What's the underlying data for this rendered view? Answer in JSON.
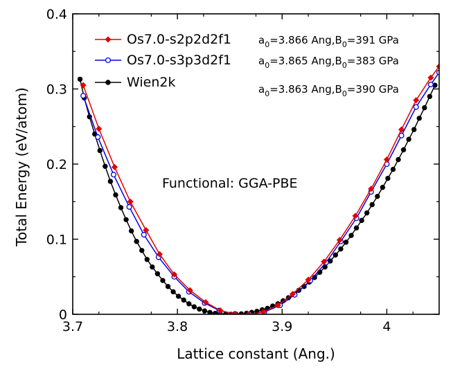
{
  "chart_data": {
    "type": "line",
    "xlabel": "Lattice constant (Ang.)",
    "ylabel": "Total Energy (eV/atom)",
    "xlim": [
      3.7,
      4.05
    ],
    "ylim": [
      0,
      0.4
    ],
    "x_ticks": [
      3.7,
      3.8,
      3.9,
      4.0
    ],
    "x_tick_labels": [
      "3.7",
      "3.8",
      "3.9",
      "4"
    ],
    "y_ticks": [
      0,
      0.1,
      0.2,
      0.3,
      0.4
    ],
    "y_tick_labels": [
      "0",
      "0.1",
      "0.2",
      "0.3",
      "0.4"
    ],
    "grid": false,
    "legend_position": "top-left",
    "annotation": "Functional: GGA-PBE",
    "series": [
      {
        "name": "Os7.0-s2p2d2f1",
        "note": {
          "a_prefix": "a",
          "a_sub": "0",
          "a_value": "=3.866 Ang,",
          "b_prefix": "B",
          "b_sub": "0",
          "b_value": "=391 GPa"
        },
        "color": "#e00000",
        "marker": "filled-diamond",
        "x": [
          3.71,
          3.725,
          3.74,
          3.755,
          3.77,
          3.783,
          3.797,
          3.812,
          3.827,
          3.841,
          3.855,
          3.868,
          3.882,
          3.896,
          3.91,
          3.925,
          3.94,
          3.955,
          3.97,
          3.985,
          4.0,
          4.014,
          4.028,
          4.042,
          4.05
        ],
        "y": [
          0.305,
          0.247,
          0.196,
          0.15,
          0.112,
          0.08,
          0.053,
          0.032,
          0.016,
          0.005,
          0.0005,
          0.0,
          0.003,
          0.012,
          0.027,
          0.046,
          0.07,
          0.099,
          0.131,
          0.167,
          0.206,
          0.246,
          0.285,
          0.315,
          0.33
        ]
      },
      {
        "name": "Os7.0-s3p3d2f1",
        "note": {
          "a_prefix": "a",
          "a_sub": "0",
          "a_value": "=3.865 Ang,",
          "b_prefix": "B",
          "b_sub": "0",
          "b_value": "=383 GPa"
        },
        "color": "#0000e0",
        "marker": "open-circle",
        "x": [
          3.71,
          3.724,
          3.739,
          3.754,
          3.768,
          3.782,
          3.797,
          3.811,
          3.826,
          3.84,
          3.855,
          3.869,
          3.883,
          3.898,
          3.912,
          3.927,
          3.942,
          3.956,
          3.971,
          3.985,
          4.0,
          4.014,
          4.028,
          4.042,
          4.05
        ],
        "y": [
          0.291,
          0.236,
          0.186,
          0.143,
          0.106,
          0.076,
          0.05,
          0.03,
          0.015,
          0.005,
          0.0005,
          0.0,
          0.003,
          0.012,
          0.026,
          0.045,
          0.069,
          0.097,
          0.128,
          0.163,
          0.2,
          0.238,
          0.276,
          0.306,
          0.322
        ]
      },
      {
        "name": "Wien2k",
        "note": {
          "a_prefix": "a",
          "a_sub": "0",
          "a_value": "=3.863 Ang,",
          "b_prefix": "B",
          "b_sub": "0",
          "b_value": "=390 GPa"
        },
        "color": "#000000",
        "marker": "filled-circle",
        "x": [
          3.707,
          3.711,
          3.716,
          3.721,
          3.726,
          3.731,
          3.736,
          3.741,
          3.746,
          3.751,
          3.756,
          3.761,
          3.766,
          3.771,
          3.776,
          3.781,
          3.786,
          3.791,
          3.796,
          3.801,
          3.806,
          3.811,
          3.816,
          3.821,
          3.826,
          3.831,
          3.836,
          3.841,
          3.846,
          3.851,
          3.856,
          3.861,
          3.866,
          3.871,
          3.876,
          3.881,
          3.886,
          3.891,
          3.896,
          3.901,
          3.906,
          3.911,
          3.916,
          3.921,
          3.926,
          3.931,
          3.936,
          3.941,
          3.946,
          3.951,
          3.956,
          3.961,
          3.966,
          3.971,
          3.976,
          3.981,
          3.986,
          3.991,
          3.996,
          4.001,
          4.006,
          4.011,
          4.016,
          4.021,
          4.026,
          4.031,
          4.036,
          4.041,
          4.046
        ],
        "y": [
          0.313,
          0.288,
          0.263,
          0.24,
          0.218,
          0.197,
          0.177,
          0.159,
          0.142,
          0.126,
          0.111,
          0.097,
          0.085,
          0.073,
          0.063,
          0.054,
          0.045,
          0.037,
          0.03,
          0.024,
          0.019,
          0.014,
          0.01,
          0.007,
          0.0045,
          0.0025,
          0.0012,
          0.0004,
          0.0001,
          0.0,
          0.0002,
          0.0006,
          0.0014,
          0.0026,
          0.004,
          0.006,
          0.008,
          0.011,
          0.014,
          0.018,
          0.022,
          0.027,
          0.032,
          0.037,
          0.043,
          0.049,
          0.056,
          0.063,
          0.071,
          0.079,
          0.087,
          0.096,
          0.105,
          0.115,
          0.125,
          0.135,
          0.146,
          0.157,
          0.169,
          0.181,
          0.193,
          0.206,
          0.219,
          0.233,
          0.246,
          0.261,
          0.275,
          0.29,
          0.305
        ]
      }
    ]
  }
}
